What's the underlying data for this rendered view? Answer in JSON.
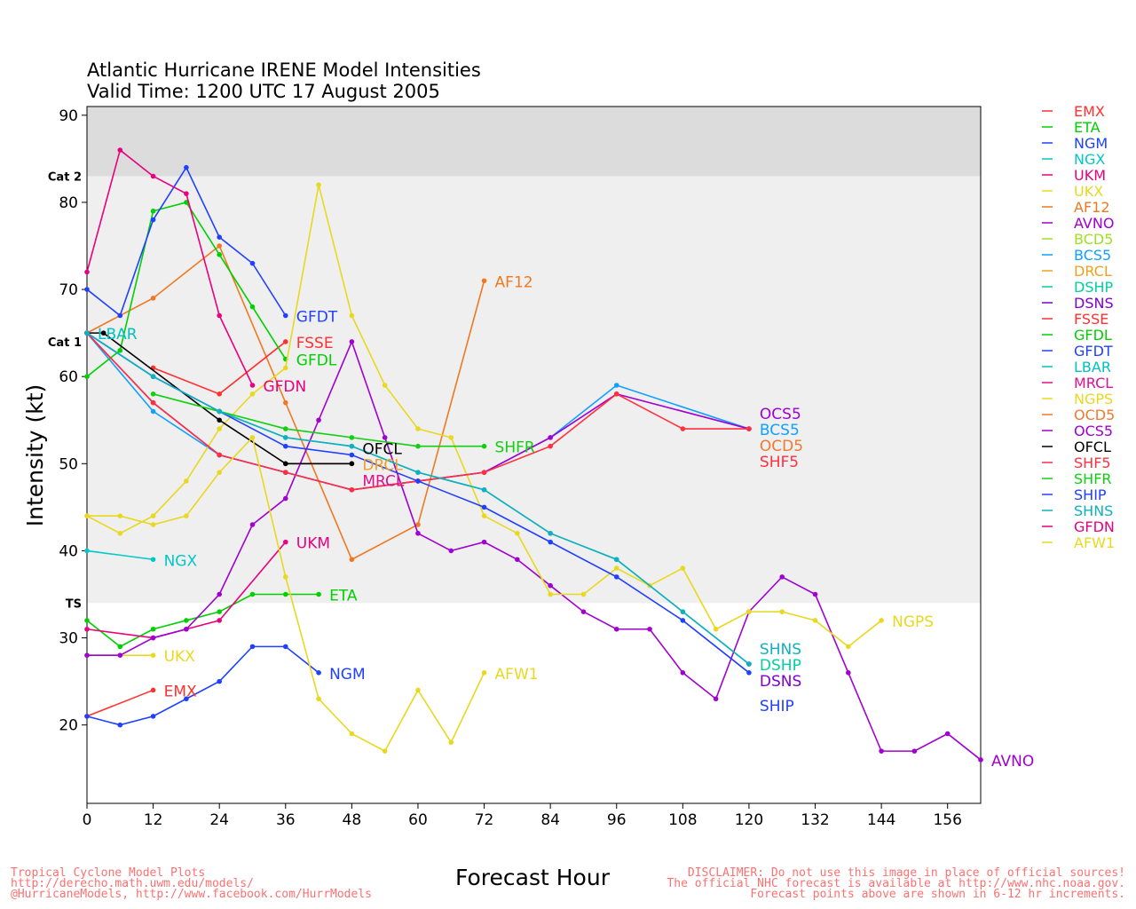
{
  "chart_data": {
    "type": "line",
    "title": "Atlantic Hurricane IRENE Model Intensities",
    "subtitle": "Valid Time: 1200 UTC 17 August 2005",
    "xlabel": "Forecast Hour",
    "ylabel": "Intensity (kt)",
    "xlim": [
      0,
      162
    ],
    "ylim": [
      11,
      91
    ],
    "xticks": [
      0,
      12,
      24,
      36,
      48,
      60,
      72,
      84,
      96,
      108,
      120,
      132,
      144,
      156
    ],
    "yticks": [
      20,
      30,
      40,
      50,
      60,
      70,
      80,
      90
    ],
    "bands": [
      {
        "label": "TS",
        "from": 34,
        "to": 64,
        "color": "#efefef"
      },
      {
        "label": "Cat 1",
        "from": 64,
        "to": 83,
        "color": "#efefef"
      },
      {
        "label": "Cat 2",
        "from": 83,
        "to": 91,
        "color": "#dcdcdc"
      }
    ],
    "legend_position": "right",
    "series": [
      {
        "name": "EMX",
        "color": "#ff3030",
        "x": [
          0,
          12
        ],
        "y": [
          21,
          24
        ],
        "label": true
      },
      {
        "name": "ETA",
        "color": "#00d000",
        "x": [
          0,
          6,
          12,
          18,
          24,
          30,
          36,
          42
        ],
        "y": [
          32,
          29,
          31,
          32,
          33,
          35,
          35,
          35
        ],
        "label": true
      },
      {
        "name": "NGM",
        "color": "#2040ff",
        "x": [
          0,
          6,
          12,
          18,
          24,
          30,
          36,
          42
        ],
        "y": [
          21,
          20,
          21,
          23,
          25,
          29,
          29,
          26
        ],
        "label": true
      },
      {
        "name": "NGX",
        "color": "#00c8c8",
        "x": [
          0,
          12
        ],
        "y": [
          40,
          39
        ],
        "label": true
      },
      {
        "name": "UKM",
        "color": "#e8007f",
        "x": [
          0,
          12,
          18,
          24,
          36
        ],
        "y": [
          31,
          30,
          31,
          32,
          41
        ],
        "label": true
      },
      {
        "name": "UKX",
        "color": "#e8d820",
        "x": [
          0,
          12
        ],
        "y": [
          28,
          28
        ],
        "label": true
      },
      {
        "name": "AF12",
        "color": "#f07820",
        "x": [
          0,
          12,
          24,
          36,
          48,
          60,
          72
        ],
        "y": [
          65,
          69,
          75,
          57,
          39,
          43,
          71
        ],
        "label": true
      },
      {
        "name": "AVNO",
        "color": "#a000d0",
        "x": [
          0,
          6,
          12,
          18,
          24,
          30,
          36,
          42,
          48,
          54,
          60,
          66,
          72,
          78,
          84,
          90,
          96,
          102,
          108,
          114,
          120,
          126,
          132,
          138,
          144,
          150,
          156,
          162
        ],
        "y": [
          28,
          28,
          30,
          31,
          35,
          43,
          46,
          55,
          64,
          53,
          42,
          40,
          41,
          39,
          36,
          33,
          31,
          31,
          26,
          23,
          33,
          37,
          35,
          26,
          17,
          17,
          19,
          16
        ],
        "label": true
      },
      {
        "name": "BCD5",
        "color": "#a0e020",
        "x": [],
        "y": [],
        "label": false
      },
      {
        "name": "BCS5",
        "color": "#10a0ff",
        "x": [
          0,
          12,
          24,
          36,
          48,
          60,
          72,
          84,
          96,
          120
        ],
        "y": [
          65,
          56,
          51,
          49,
          47,
          48,
          49,
          53,
          59,
          54
        ],
        "label": true
      },
      {
        "name": "DRCL",
        "color": "#f0a020",
        "x": [
          36,
          48
        ],
        "y": [
          50,
          50
        ],
        "label": true
      },
      {
        "name": "DSHP",
        "color": "#00d0a0",
        "x": [
          0,
          12,
          24,
          36,
          48,
          60,
          72,
          84,
          96,
          108,
          120
        ],
        "y": [
          65,
          60,
          56,
          53,
          52,
          49,
          47,
          42,
          39,
          33,
          27
        ],
        "label": true
      },
      {
        "name": "DSNS",
        "color": "#8000d0",
        "x": [
          120
        ],
        "y": [
          27
        ],
        "label": true
      },
      {
        "name": "FSSE",
        "color": "#ff3030",
        "x": [
          12,
          24,
          36
        ],
        "y": [
          61,
          58,
          64
        ],
        "label": true
      },
      {
        "name": "GFDL",
        "color": "#00d000",
        "x": [
          0,
          6,
          12,
          18,
          24,
          30,
          36
        ],
        "y": [
          60,
          63,
          79,
          80,
          74,
          68,
          62
        ],
        "label": true
      },
      {
        "name": "GFDT",
        "color": "#2040ff",
        "x": [
          0,
          6,
          12,
          18,
          24,
          30,
          36
        ],
        "y": [
          70,
          67,
          78,
          84,
          76,
          73,
          67
        ],
        "label": true
      },
      {
        "name": "LBAR",
        "color": "#00c0c0",
        "x": [
          0
        ],
        "y": [
          65
        ],
        "label": true
      },
      {
        "name": "MRCL",
        "color": "#e0108f",
        "x": [
          36,
          48
        ],
        "y": [
          50,
          50
        ],
        "label": true
      },
      {
        "name": "NGPS",
        "color": "#e8d820",
        "x": [
          0,
          6,
          12,
          18,
          24,
          30,
          36,
          42,
          48,
          54,
          60,
          66,
          72,
          78,
          84,
          90,
          96,
          102,
          108,
          114,
          120,
          126,
          132,
          138,
          144
        ],
        "y": [
          44,
          42,
          44,
          48,
          54,
          58,
          61,
          82,
          67,
          59,
          54,
          53,
          44,
          42,
          35,
          35,
          38,
          36,
          38,
          31,
          33,
          33,
          32,
          29,
          32
        ],
        "label": true
      },
      {
        "name": "OCD5",
        "color": "#f07830",
        "x": [
          120
        ],
        "y": [
          54
        ],
        "label": true
      },
      {
        "name": "OCS5",
        "color": "#a000d0",
        "x": [
          0,
          12,
          24,
          36,
          48,
          60,
          72,
          84,
          96,
          120
        ],
        "y": [
          65,
          57,
          51,
          49,
          47,
          48,
          49,
          53,
          58,
          54
        ],
        "label": true
      },
      {
        "name": "OFCL",
        "color": "#000000",
        "x": [
          0,
          3,
          24,
          36,
          48
        ],
        "y": [
          65,
          65,
          55,
          50,
          50
        ],
        "label": true
      },
      {
        "name": "SHF5",
        "color": "#ff3040",
        "x": [
          0,
          12,
          24,
          36,
          48,
          60,
          72,
          84,
          96,
          108,
          120
        ],
        "y": [
          65,
          57,
          51,
          49,
          47,
          48,
          49,
          52,
          58,
          54,
          54
        ],
        "label": true
      },
      {
        "name": "SHFR",
        "color": "#10d010",
        "x": [
          12,
          24,
          36,
          48,
          60,
          72
        ],
        "y": [
          58,
          56,
          54,
          53,
          52,
          52
        ],
        "label": true
      },
      {
        "name": "SHIP",
        "color": "#2040ff",
        "x": [
          0,
          12,
          24,
          36,
          48,
          60,
          72,
          84,
          96,
          108,
          120
        ],
        "y": [
          65,
          60,
          56,
          52,
          51,
          48,
          45,
          41,
          37,
          32,
          26
        ],
        "label": true
      },
      {
        "name": "SHNS",
        "color": "#10b0c0",
        "x": [
          0,
          12,
          24,
          36,
          48,
          60,
          72,
          84,
          96,
          108,
          120
        ],
        "y": [
          65,
          60,
          56,
          53,
          52,
          49,
          47,
          42,
          39,
          33,
          27
        ],
        "label": true
      },
      {
        "name": "GFDN",
        "color": "#e8007f",
        "x": [
          0,
          6,
          12,
          18,
          24,
          30
        ],
        "y": [
          72,
          86,
          83,
          81,
          67,
          59
        ],
        "label": true
      },
      {
        "name": "AFW1",
        "color": "#e8d820",
        "x": [
          0,
          6,
          12,
          18,
          24,
          30,
          36,
          42,
          48,
          54,
          60,
          66,
          72
        ],
        "y": [
          44,
          44,
          43,
          44,
          49,
          53,
          37,
          23,
          19,
          17,
          24,
          18,
          26
        ],
        "label": true
      }
    ]
  },
  "footer": {
    "left": [
      "Tropical Cyclone Model Plots",
      "http://derecho.math.uwm.edu/models/",
      "@HurricaneModels, http://www.facebook.com/HurrModels"
    ],
    "right": [
      "DISCLAIMER: Do not use this image in place of official sources!",
      "The official NHC forecast is available at http://www.nhc.noaa.gov.",
      "Forecast points above are shown in 6-12 hr increments."
    ]
  }
}
